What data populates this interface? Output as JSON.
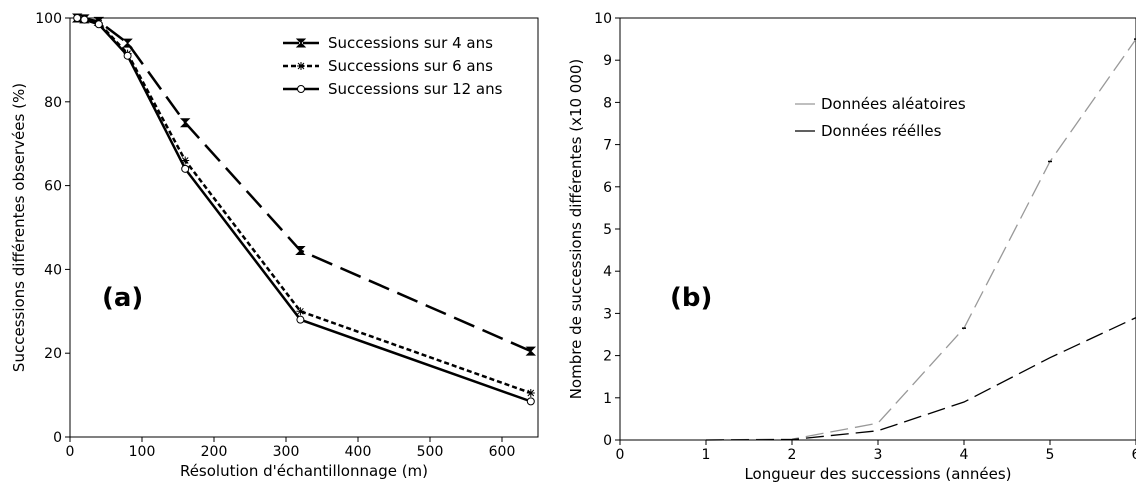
{
  "chart_data": [
    {
      "type": "line",
      "panel_label": "(a)",
      "title": "",
      "xlabel": "Résolution d'échantillonnage (m)",
      "ylabel": "Successions différentes observées (%)",
      "xlim": [
        0,
        650
      ],
      "ylim": [
        0,
        100
      ],
      "xticks": [
        "0",
        "100",
        "200",
        "300",
        "400",
        "500",
        "600"
      ],
      "yticks": [
        "0",
        "20",
        "40",
        "60",
        "80",
        "100"
      ],
      "legend_position": "top-right",
      "grid": false,
      "series": [
        {
          "name": "Successions sur 4 ans",
          "marker": "hourglass",
          "x": [
            10,
            20,
            40,
            80,
            160,
            320,
            640
          ],
          "y": [
            100,
            99.8,
            99.2,
            94,
            75,
            44.5,
            20.5
          ]
        },
        {
          "name": "Successions sur 6 ans",
          "marker": "asterisk",
          "x": [
            10,
            20,
            40,
            80,
            160,
            320,
            640
          ],
          "y": [
            100,
            99.7,
            98.8,
            91.5,
            66,
            30,
            10.5
          ]
        },
        {
          "name": "Successions sur 12 ans",
          "marker": "circle",
          "x": [
            10,
            20,
            40,
            80,
            160,
            320,
            640
          ],
          "y": [
            100,
            99.6,
            98.5,
            91,
            64,
            28,
            8.5
          ]
        }
      ]
    },
    {
      "type": "line",
      "panel_label": "(b)",
      "title": "",
      "xlabel": "Longueur des successions (années)",
      "ylabel": "Nombre de successions différentes (x10 000)",
      "xlim": [
        0,
        6
      ],
      "ylim": [
        0,
        10
      ],
      "xticks": [
        "0",
        "1",
        "2",
        "3",
        "4",
        "5",
        "6"
      ],
      "yticks": [
        "0",
        "1",
        "2",
        "3",
        "4",
        "5",
        "6",
        "7",
        "8",
        "9",
        "10"
      ],
      "legend_position": "upper-center",
      "grid": false,
      "series": [
        {
          "name": "Données aléatoires",
          "color": "#999999",
          "x": [
            1,
            2,
            3,
            4,
            5,
            6
          ],
          "y": [
            0,
            0.02,
            0.4,
            2.65,
            6.6,
            9.5
          ]
        },
        {
          "name": "Données réélles",
          "color": "#000000",
          "x": [
            1,
            2,
            3,
            4,
            5,
            6
          ],
          "y": [
            0,
            0.01,
            0.22,
            0.9,
            1.95,
            2.9
          ]
        }
      ]
    }
  ]
}
